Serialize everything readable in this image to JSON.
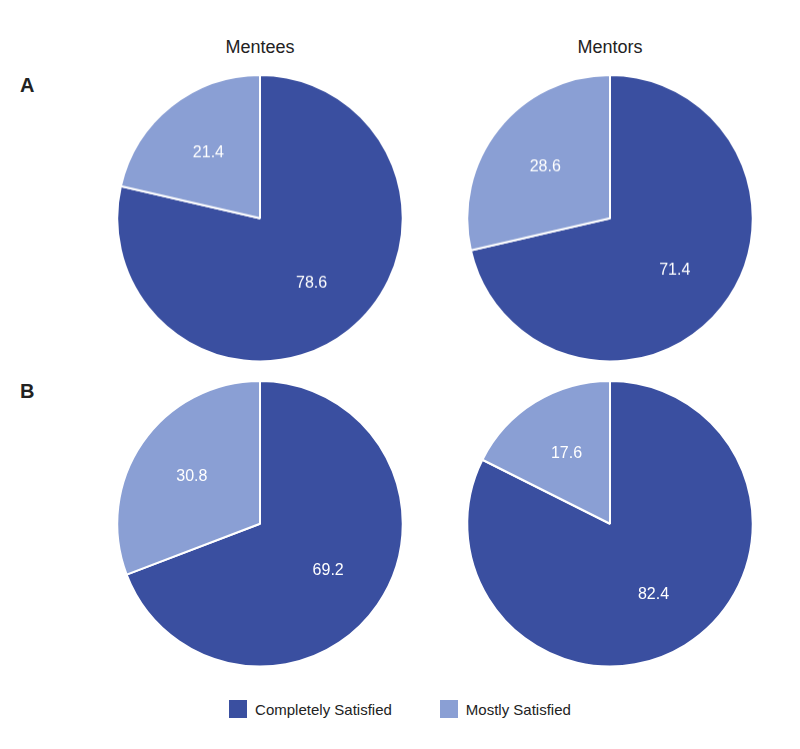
{
  "chart_data": [
    {
      "type": "pie",
      "title": "Mentees",
      "ylabel": "A",
      "categories": [
        "Completely Satisfied",
        "Mostly Satisfied"
      ],
      "values": [
        78.6,
        21.4
      ],
      "colors": [
        "#3a4fa0",
        "#8a9fd4"
      ],
      "data_labels": true,
      "legend": "bottom"
    },
    {
      "type": "pie",
      "title": "Mentors",
      "categories": [
        "Completely Satisfied",
        "Mostly Satisfied"
      ],
      "values": [
        71.4,
        28.6
      ],
      "colors": [
        "#3a4fa0",
        "#8a9fd4"
      ],
      "data_labels": true,
      "legend": "bottom"
    },
    {
      "type": "pie",
      "ylabel": "B",
      "categories": [
        "Completely Satisfied",
        "Mostly Satisfied"
      ],
      "values": [
        69.2,
        30.8
      ],
      "colors": [
        "#3a4fa0",
        "#8a9fd4"
      ],
      "data_labels": true,
      "legend": "bottom"
    },
    {
      "type": "pie",
      "categories": [
        "Completely Satisfied",
        "Mostly Satisfied"
      ],
      "values": [
        82.4,
        17.6
      ],
      "colors": [
        "#3a4fa0",
        "#8a9fd4"
      ],
      "data_labels": true,
      "legend": "bottom"
    }
  ]
}
